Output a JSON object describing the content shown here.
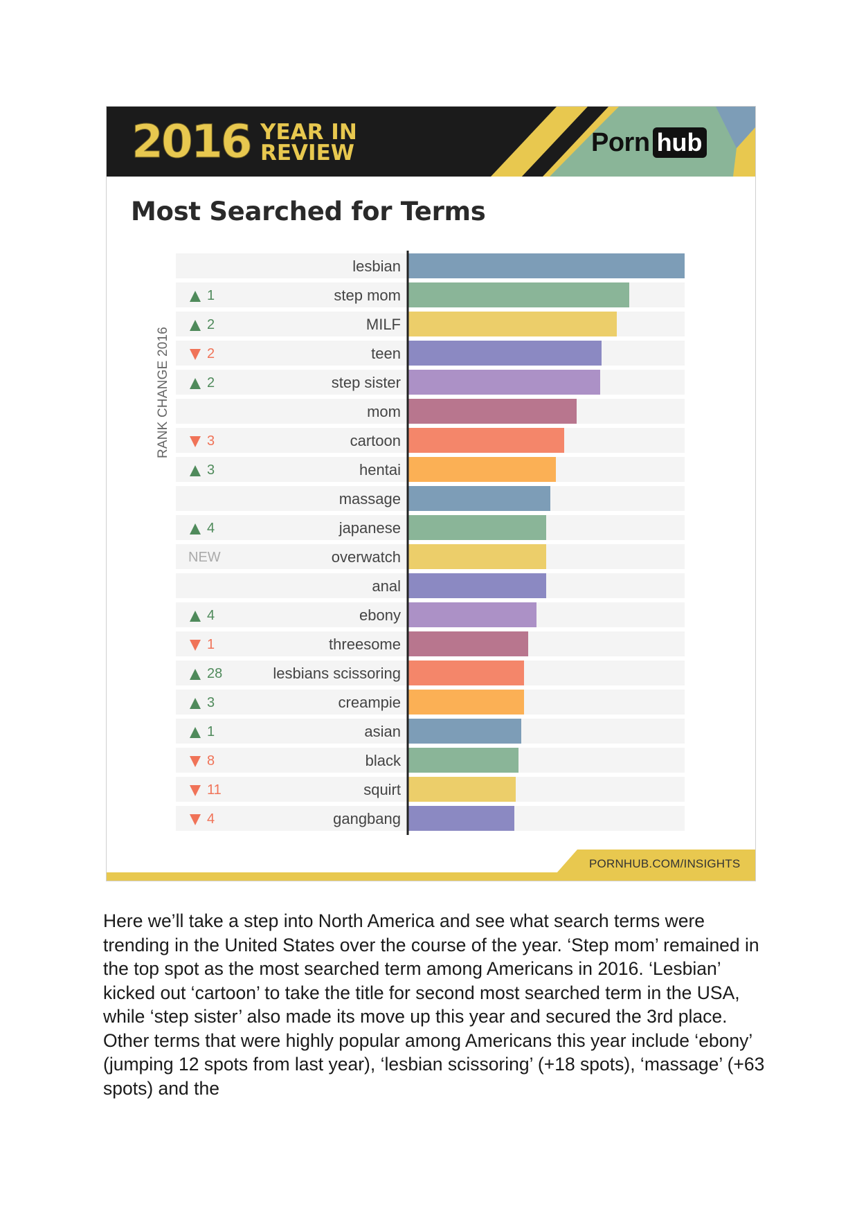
{
  "header": {
    "year": "2016",
    "year_in_review_line1": "YEAR IN",
    "year_in_review_line2": "REVIEW",
    "brand_part1": "Porn",
    "brand_part2": "hub"
  },
  "colors": {
    "header_bg": "#1b1b1b",
    "accent_yellow": "#e8c84f",
    "up": "#4f8a5b",
    "down": "#f07358",
    "new": "#aaaaaa"
  },
  "chart_data": {
    "type": "bar",
    "orientation": "horizontal",
    "title": "Most Searched for Terms",
    "rank_axis_label": "RANK CHANGE 2016",
    "categories": [
      "lesbian",
      "step mom",
      "MILF",
      "teen",
      "step sister",
      "mom",
      "cartoon",
      "hentai",
      "massage",
      "japanese",
      "overwatch",
      "anal",
      "ebony",
      "threesome",
      "lesbians scissoring",
      "creampie",
      "asian",
      "black",
      "squirt",
      "gangbang"
    ],
    "values": [
      100,
      80,
      75.5,
      70,
      69.5,
      61,
      56.5,
      53.5,
      51.5,
      50,
      50,
      50,
      46.5,
      43.5,
      42,
      42,
      41,
      40,
      39,
      38.5
    ],
    "value_unit": "relative search volume (top term = 100, estimated)",
    "bar_colors": [
      "#7d9db7",
      "#8ab598",
      "#ecce6a",
      "#8b89c2",
      "#ac91c6",
      "#b8768e",
      "#f4866a",
      "#fbb055",
      "#7d9db7",
      "#8ab598",
      "#ecce6a",
      "#8b89c2",
      "#ac91c6",
      "#b8768e",
      "#f4866a",
      "#fbb055",
      "#7d9db7",
      "#8ab598",
      "#ecce6a",
      "#8b89c2"
    ],
    "rank_change": [
      {
        "dir": "",
        "label": ""
      },
      {
        "dir": "up",
        "label": "1"
      },
      {
        "dir": "up",
        "label": "2"
      },
      {
        "dir": "down",
        "label": "2"
      },
      {
        "dir": "up",
        "label": "2"
      },
      {
        "dir": "",
        "label": ""
      },
      {
        "dir": "down",
        "label": "3"
      },
      {
        "dir": "up",
        "label": "3"
      },
      {
        "dir": "",
        "label": ""
      },
      {
        "dir": "up",
        "label": "4"
      },
      {
        "dir": "new",
        "label": "NEW"
      },
      {
        "dir": "",
        "label": ""
      },
      {
        "dir": "up",
        "label": "4"
      },
      {
        "dir": "down",
        "label": "1"
      },
      {
        "dir": "up",
        "label": "28"
      },
      {
        "dir": "up",
        "label": "3"
      },
      {
        "dir": "up",
        "label": "1"
      },
      {
        "dir": "down",
        "label": "8"
      },
      {
        "dir": "down",
        "label": "11"
      },
      {
        "dir": "down",
        "label": "4"
      }
    ],
    "xlim": [
      0,
      100
    ],
    "grid": false,
    "legend": "none"
  },
  "footer": {
    "url": "PORNHUB.COM/INSIGHTS"
  },
  "body_text": "Here we’ll take a step into North America and see what search terms were trending in the United States over the course of the year. ‘Step mom’ remained in the top spot as the most searched term among Americans in 2016. ‘Lesbian’ kicked out ‘cartoon’ to take the title for second most searched term in the USA, while ‘step sister’ also made its move up this year and secured the 3rd place. Other terms that were highly popular among Americans this year include ‘ebony’ (jumping 12 spots from last year), ‘lesbian scissoring’ (+18 spots), ‘massage’ (+63 spots) and the"
}
